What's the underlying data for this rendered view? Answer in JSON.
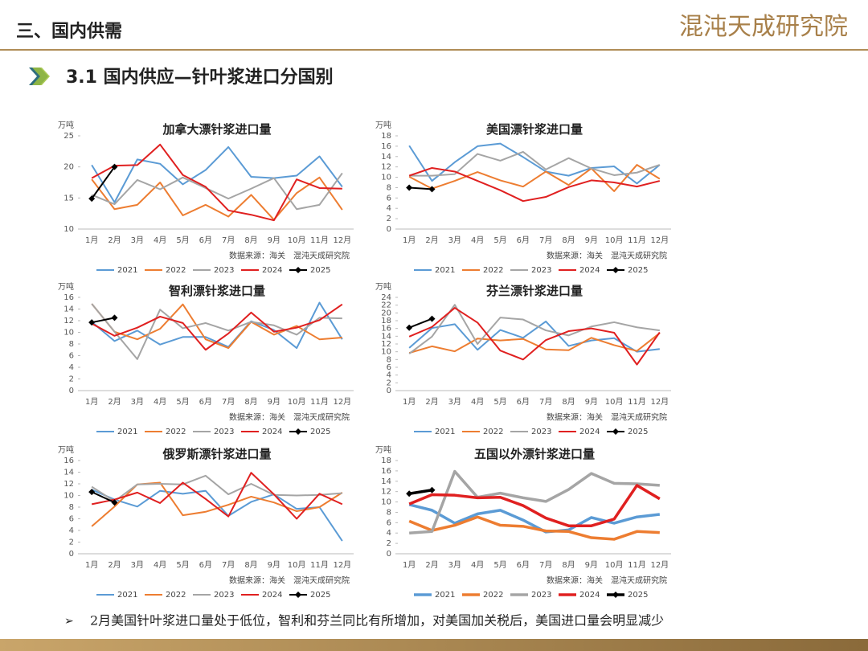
{
  "header": {
    "section": "三、国内供需",
    "logo": "混沌天成研究院"
  },
  "subtitle": "3.1 国内供应—针叶浆进口分国别",
  "footer_note": "2月美国针叶浆进口量处于低位，智利和芬兰同比有所增加，对美国加关税后，美国进口量会明显减少",
  "chart_data": [
    {
      "type": "line",
      "title": "加拿大漂针浆进口量",
      "y_unit": "万吨",
      "source": "数据来源：海关　混沌天成研究院",
      "line_width": 2,
      "categories": [
        "1月",
        "2月",
        "3月",
        "4月",
        "5月",
        "6月",
        "7月",
        "8月",
        "9月",
        "10月",
        "11月",
        "12月"
      ],
      "ylim": [
        10,
        25
      ],
      "yticks": [
        10,
        15,
        20,
        25
      ],
      "series": [
        {
          "name": "2021",
          "color": "#5b9bd5",
          "values": [
            20.3,
            14.3,
            21.2,
            20.5,
            17.2,
            19.5,
            23.2,
            18.4,
            18.2,
            18.6,
            21.7,
            16.8
          ]
        },
        {
          "name": "2022",
          "color": "#ed7d31",
          "values": [
            18.0,
            13.2,
            13.9,
            17.5,
            12.2,
            13.9,
            12.0,
            15.5,
            11.5,
            15.8,
            18.3,
            13.1
          ]
        },
        {
          "name": "2023",
          "color": "#a5a5a5",
          "values": [
            15.5,
            14.0,
            17.9,
            16.4,
            18.3,
            16.6,
            14.9,
            16.5,
            18.2,
            13.2,
            13.9,
            19.0
          ]
        },
        {
          "name": "2024",
          "color": "#e02020",
          "values": [
            18.2,
            20.2,
            20.3,
            23.6,
            18.7,
            16.8,
            13.0,
            12.3,
            11.4,
            18.0,
            16.6,
            16.5
          ]
        },
        {
          "name": "2025",
          "color": "#000000",
          "marker": "diamond",
          "values": [
            14.9,
            20.0,
            null,
            null,
            null,
            null,
            null,
            null,
            null,
            null,
            null,
            null
          ]
        }
      ]
    },
    {
      "type": "line",
      "title": "美国漂针浆进口量",
      "y_unit": "万吨",
      "source": "数据来源：海关　混沌天成研究院",
      "line_width": 2,
      "categories": [
        "1月",
        "2月",
        "3月",
        "4月",
        "5月",
        "6月",
        "7月",
        "8月",
        "9月",
        "10月",
        "11月",
        "12月"
      ],
      "ylim": [
        0,
        18
      ],
      "yticks": [
        0,
        2,
        4,
        6,
        8,
        10,
        12,
        14,
        16,
        18
      ],
      "series": [
        {
          "name": "2021",
          "color": "#5b9bd5",
          "values": [
            16.1,
            9.3,
            12.9,
            16.0,
            16.5,
            13.9,
            11.1,
            10.3,
            11.8,
            12.1,
            8.8,
            12.4
          ]
        },
        {
          "name": "2022",
          "color": "#ed7d31",
          "values": [
            10.1,
            7.8,
            9.3,
            11.0,
            9.4,
            8.2,
            11.1,
            8.5,
            11.7,
            7.3,
            12.4,
            9.7
          ]
        },
        {
          "name": "2023",
          "color": "#a5a5a5",
          "values": [
            10.3,
            10.3,
            10.6,
            14.5,
            13.2,
            14.9,
            11.5,
            13.7,
            11.7,
            10.4,
            10.9,
            12.4
          ]
        },
        {
          "name": "2024",
          "color": "#e02020",
          "values": [
            10.3,
            11.8,
            11.1,
            9.3,
            7.5,
            5.4,
            6.2,
            8.1,
            9.4,
            9.0,
            8.2,
            9.3
          ]
        },
        {
          "name": "2025",
          "color": "#000000",
          "marker": "diamond",
          "values": [
            8.0,
            7.7,
            null,
            null,
            null,
            null,
            null,
            null,
            null,
            null,
            null,
            null
          ]
        }
      ]
    },
    {
      "type": "line",
      "title": "智利漂针浆进口量",
      "y_unit": "万吨",
      "source": "数据来源：海关　混沌天成研究院",
      "line_width": 2,
      "categories": [
        "1月",
        "2月",
        "3月",
        "4月",
        "5月",
        "6月",
        "7月",
        "8月",
        "9月",
        "10月",
        "11月",
        "12月"
      ],
      "ylim": [
        0,
        16
      ],
      "yticks": [
        0,
        2,
        4,
        6,
        8,
        10,
        12,
        14,
        16
      ],
      "series": [
        {
          "name": "2021",
          "color": "#5b9bd5",
          "values": [
            11.8,
            8.5,
            10.3,
            7.9,
            9.2,
            9.2,
            7.5,
            11.9,
            10.4,
            7.3,
            15.1,
            8.8
          ]
        },
        {
          "name": "2022",
          "color": "#ed7d31",
          "values": [
            14.9,
            10.1,
            8.8,
            10.6,
            14.8,
            8.8,
            7.3,
            11.8,
            9.6,
            11.1,
            8.8,
            9.1
          ]
        },
        {
          "name": "2023",
          "color": "#a5a5a5",
          "values": [
            14.9,
            10.1,
            5.4,
            13.9,
            10.7,
            11.6,
            10.3,
            11.8,
            11.2,
            9.6,
            12.5,
            12.4
          ]
        },
        {
          "name": "2024",
          "color": "#e02020",
          "values": [
            11.5,
            9.4,
            10.8,
            12.7,
            11.6,
            7.0,
            9.8,
            13.4,
            10.1,
            10.8,
            12.1,
            14.8
          ]
        },
        {
          "name": "2025",
          "color": "#000000",
          "marker": "diamond",
          "values": [
            11.7,
            12.5,
            null,
            null,
            null,
            null,
            null,
            null,
            null,
            null,
            null,
            null
          ]
        }
      ]
    },
    {
      "type": "line",
      "title": "芬兰漂针浆进口量",
      "y_unit": "万吨",
      "source": "数据来源：海关　混沌天成研究院",
      "line_width": 2,
      "categories": [
        "1月",
        "2月",
        "3月",
        "4月",
        "5月",
        "6月",
        "7月",
        "8月",
        "9月",
        "10月",
        "11月",
        "12月"
      ],
      "ylim": [
        0,
        24
      ],
      "yticks": [
        0,
        2,
        4,
        6,
        8,
        10,
        12,
        14,
        16,
        18,
        20,
        22,
        24
      ],
      "series": [
        {
          "name": "2021",
          "color": "#5b9bd5",
          "values": [
            11.0,
            16.1,
            17.1,
            10.5,
            15.6,
            13.6,
            17.8,
            11.5,
            12.9,
            13.5,
            10.0,
            10.7
          ]
        },
        {
          "name": "2022",
          "color": "#ed7d31",
          "values": [
            9.7,
            11.4,
            10.1,
            13.4,
            12.9,
            13.3,
            10.6,
            10.4,
            13.6,
            11.7,
            10.2,
            14.8
          ]
        },
        {
          "name": "2023",
          "color": "#a5a5a5",
          "values": [
            9.5,
            13.9,
            22.1,
            12.0,
            18.8,
            18.3,
            15.5,
            14.2,
            16.5,
            17.6,
            16.3,
            15.5
          ]
        },
        {
          "name": "2024",
          "color": "#e02020",
          "values": [
            13.9,
            16.4,
            21.3,
            17.5,
            10.3,
            8.0,
            13.0,
            15.3,
            16.0,
            14.9,
            6.7,
            15.0
          ]
        },
        {
          "name": "2025",
          "color": "#000000",
          "marker": "diamond",
          "values": [
            16.2,
            18.5,
            null,
            null,
            null,
            null,
            null,
            null,
            null,
            null,
            null,
            null
          ]
        }
      ]
    },
    {
      "type": "line",
      "title": "俄罗斯漂针浆进口量",
      "y_unit": "万吨",
      "source": "数据来源：海关　混沌天成研究院",
      "line_width": 2,
      "categories": [
        "1月",
        "2月",
        "3月",
        "4月",
        "5月",
        "6月",
        "7月",
        "8月",
        "9月",
        "10月",
        "11月",
        "12月"
      ],
      "ylim": [
        0,
        16
      ],
      "yticks": [
        0,
        2,
        4,
        6,
        8,
        10,
        12,
        14,
        16
      ],
      "series": [
        {
          "name": "2021",
          "color": "#5b9bd5",
          "values": [
            11.0,
            9.3,
            8.1,
            10.8,
            10.3,
            10.8,
            6.5,
            8.9,
            10.2,
            7.7,
            8.0,
            2.2
          ]
        },
        {
          "name": "2022",
          "color": "#ed7d31",
          "values": [
            4.7,
            8.1,
            11.9,
            12.2,
            6.6,
            7.2,
            8.4,
            9.8,
            8.8,
            7.3,
            8.0,
            10.5
          ]
        },
        {
          "name": "2023",
          "color": "#a5a5a5",
          "values": [
            11.5,
            9.0,
            11.9,
            12.0,
            11.9,
            13.4,
            10.2,
            12.0,
            10.1,
            10.0,
            10.1,
            10.4
          ]
        },
        {
          "name": "2024",
          "color": "#e02020",
          "values": [
            8.5,
            9.3,
            10.5,
            8.7,
            12.2,
            9.4,
            6.4,
            13.9,
            10.2,
            6.0,
            10.3,
            8.5
          ]
        },
        {
          "name": "2025",
          "color": "#000000",
          "marker": "diamond",
          "values": [
            10.6,
            8.8,
            null,
            null,
            null,
            null,
            null,
            null,
            null,
            null,
            null,
            null
          ]
        }
      ]
    },
    {
      "type": "line",
      "title": "五国以外漂针浆进口量",
      "y_unit": "万吨",
      "source": "数据来源：海关　混沌天成研究院",
      "line_width": 3.5,
      "categories": [
        "1月",
        "2月",
        "3月",
        "4月",
        "5月",
        "6月",
        "7月",
        "8月",
        "9月",
        "10月",
        "11月",
        "12月"
      ],
      "ylim": [
        0,
        18
      ],
      "yticks": [
        0,
        2,
        4,
        6,
        8,
        10,
        12,
        14,
        16,
        18
      ],
      "series": [
        {
          "name": "2021",
          "color": "#5b9bd5",
          "values": [
            9.5,
            8.4,
            5.9,
            7.7,
            8.4,
            6.5,
            4.2,
            4.6,
            7.0,
            5.9,
            7.1,
            7.6
          ]
        },
        {
          "name": "2022",
          "color": "#ed7d31",
          "values": [
            6.3,
            4.5,
            5.5,
            7.1,
            5.5,
            5.3,
            4.4,
            4.3,
            3.1,
            2.8,
            4.3,
            4.1
          ]
        },
        {
          "name": "2023",
          "color": "#a5a5a5",
          "values": [
            4.0,
            4.3,
            15.9,
            10.9,
            11.7,
            10.8,
            10.1,
            12.4,
            15.5,
            13.6,
            13.5,
            13.2
          ]
        },
        {
          "name": "2024",
          "color": "#e02020",
          "values": [
            9.6,
            11.4,
            11.3,
            10.8,
            10.9,
            9.3,
            6.9,
            5.4,
            5.4,
            6.7,
            13.2,
            10.6
          ]
        },
        {
          "name": "2025",
          "color": "#000000",
          "marker": "diamond",
          "values": [
            11.6,
            12.3,
            null,
            null,
            null,
            null,
            null,
            null,
            null,
            null,
            null,
            null
          ]
        }
      ]
    }
  ]
}
